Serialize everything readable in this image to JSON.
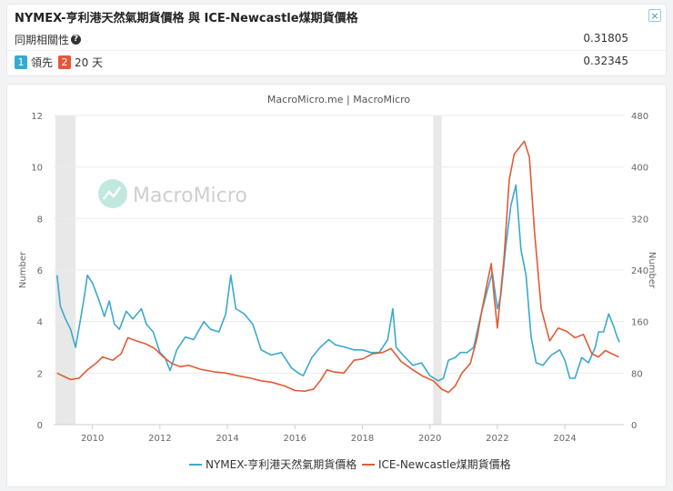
{
  "header": {
    "title": "NYMEX-亨利港天然氣期貨價格 與 ICE-Newcastle煤期貨價格",
    "close_icon": "×",
    "correlation_label": "同期相關性",
    "correlation_value": "0.31805",
    "lead_badge_1": "1",
    "lead_label": "領先",
    "lead_badge_2": "2",
    "lead_days": "20 天",
    "lead_value": "0.32345"
  },
  "colors": {
    "gas": "#3ba8cf",
    "coal": "#e15b35",
    "watermark": "#8fd6c4"
  },
  "watermark": "MacroMicro",
  "chart_data": {
    "type": "line",
    "title": "MacroMicro.me | MacroMicro",
    "ylabel_left": "Number",
    "ylabel_right": "Number",
    "y_left_range": [
      0,
      12
    ],
    "y_right_range": [
      0,
      480
    ],
    "y_left_ticks": [
      "0",
      "2",
      "4",
      "6",
      "8",
      "10",
      "12"
    ],
    "y_right_ticks": [
      "0",
      "80",
      "160",
      "240",
      "320",
      "400",
      "480"
    ],
    "x_range": [
      2008.85,
      2025.75
    ],
    "x_ticks": [
      "2010",
      "2012",
      "2014",
      "2016",
      "2018",
      "2020",
      "2022",
      "2024"
    ],
    "x_tick_values": [
      2010,
      2012,
      2014,
      2016,
      2018,
      2020,
      2022,
      2024
    ],
    "shaded_periods": [
      [
        2008.9,
        2009.5
      ],
      [
        2020.1,
        2020.35
      ]
    ],
    "series": [
      {
        "name": "NYMEX-亨利港天然氣期貨價格",
        "axis": "left",
        "x": [
          2008.95,
          2009.05,
          2009.2,
          2009.35,
          2009.5,
          2009.62,
          2009.75,
          2009.85,
          2010.0,
          2010.2,
          2010.35,
          2010.5,
          2010.65,
          2010.8,
          2011.0,
          2011.2,
          2011.45,
          2011.6,
          2011.8,
          2012.0,
          2012.15,
          2012.3,
          2012.5,
          2012.75,
          2013.0,
          2013.3,
          2013.5,
          2013.75,
          2013.95,
          2014.1,
          2014.25,
          2014.5,
          2014.75,
          2015.0,
          2015.3,
          2015.6,
          2015.9,
          2016.1,
          2016.25,
          2016.5,
          2016.75,
          2017.0,
          2017.2,
          2017.5,
          2017.75,
          2018.0,
          2018.25,
          2018.5,
          2018.75,
          2018.9,
          2019.0,
          2019.2,
          2019.5,
          2019.75,
          2020.0,
          2020.25,
          2020.4,
          2020.55,
          2020.75,
          2020.9,
          2021.1,
          2021.3,
          2021.5,
          2021.7,
          2021.85,
          2022.0,
          2022.1,
          2022.25,
          2022.4,
          2022.55,
          2022.7,
          2022.85,
          2023.0,
          2023.15,
          2023.35,
          2023.6,
          2023.85,
          2024.0,
          2024.15,
          2024.3,
          2024.5,
          2024.7,
          2024.9,
          2025.0,
          2025.15,
          2025.3,
          2025.45,
          2025.55,
          2025.62
        ],
        "values": [
          5.8,
          4.6,
          4.1,
          3.7,
          3.0,
          3.9,
          4.9,
          5.8,
          5.5,
          4.8,
          4.2,
          4.8,
          3.9,
          3.7,
          4.4,
          4.1,
          4.5,
          3.9,
          3.6,
          2.8,
          2.6,
          2.1,
          2.9,
          3.4,
          3.3,
          4.0,
          3.7,
          3.6,
          4.3,
          5.8,
          4.5,
          4.3,
          3.9,
          2.9,
          2.7,
          2.8,
          2.2,
          2.0,
          1.9,
          2.6,
          3.0,
          3.3,
          3.1,
          3.0,
          2.9,
          2.9,
          2.8,
          2.8,
          3.3,
          4.5,
          3.0,
          2.7,
          2.3,
          2.4,
          1.9,
          1.7,
          1.8,
          2.5,
          2.6,
          2.8,
          2.8,
          3.0,
          4.2,
          5.2,
          5.9,
          4.5,
          5.0,
          6.9,
          8.5,
          9.3,
          6.8,
          5.8,
          3.4,
          2.4,
          2.3,
          2.7,
          2.9,
          2.5,
          1.8,
          1.8,
          2.6,
          2.4,
          3.0,
          3.6,
          3.6,
          4.3,
          3.8,
          3.4,
          3.2
        ]
      },
      {
        "name": "ICE-Newcastle煤期貨價格",
        "axis": "right",
        "x": [
          2008.95,
          2009.15,
          2009.35,
          2009.6,
          2009.85,
          2010.1,
          2010.3,
          2010.6,
          2010.85,
          2011.05,
          2011.3,
          2011.6,
          2011.85,
          2012.1,
          2012.35,
          2012.6,
          2012.85,
          2013.2,
          2013.6,
          2013.95,
          2014.3,
          2014.7,
          2015.0,
          2015.3,
          2015.7,
          2016.0,
          2016.3,
          2016.55,
          2016.75,
          2016.95,
          2017.15,
          2017.45,
          2017.75,
          2018.0,
          2018.3,
          2018.6,
          2018.85,
          2019.15,
          2019.5,
          2019.8,
          2020.1,
          2020.35,
          2020.55,
          2020.75,
          2020.95,
          2021.2,
          2021.4,
          2021.55,
          2021.7,
          2021.82,
          2021.9,
          2022.0,
          2022.2,
          2022.35,
          2022.5,
          2022.65,
          2022.8,
          2022.95,
          2023.1,
          2023.3,
          2023.55,
          2023.8,
          2024.05,
          2024.3,
          2024.55,
          2024.8,
          2025.0,
          2025.2,
          2025.4,
          2025.6
        ],
        "values": [
          80,
          75,
          70,
          72,
          85,
          95,
          105,
          100,
          110,
          135,
          130,
          125,
          118,
          105,
          95,
          90,
          92,
          86,
          82,
          80,
          76,
          72,
          68,
          66,
          60,
          53,
          52,
          55,
          68,
          85,
          82,
          80,
          100,
          102,
          110,
          112,
          118,
          98,
          85,
          75,
          68,
          55,
          50,
          60,
          80,
          95,
          135,
          180,
          220,
          250,
          200,
          150,
          260,
          380,
          420,
          430,
          440,
          415,
          300,
          180,
          130,
          150,
          145,
          135,
          140,
          110,
          105,
          115,
          110,
          105
        ]
      }
    ]
  }
}
